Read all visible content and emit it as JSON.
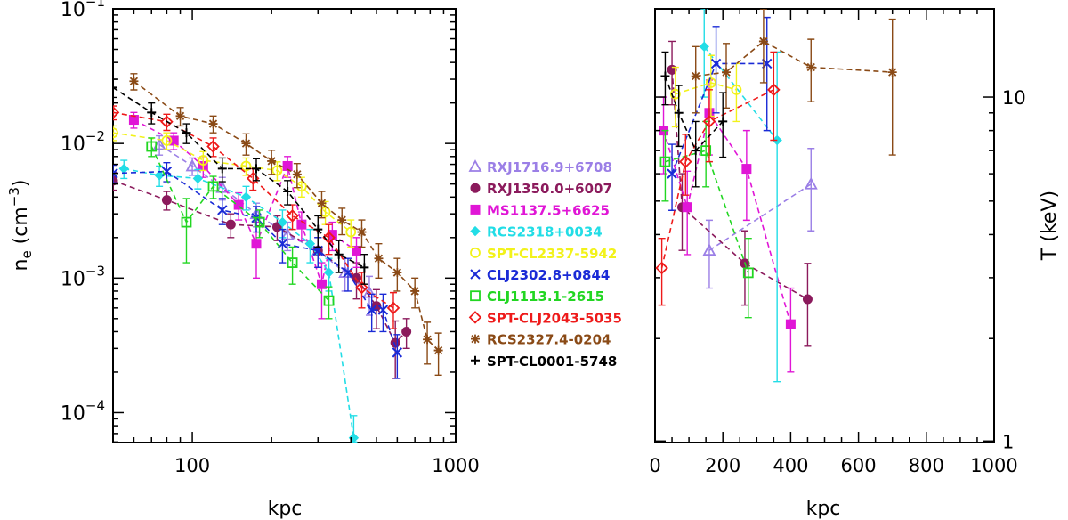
{
  "chart_data": [
    {
      "type": "scatter",
      "panel": "left",
      "xlabel": "kpc",
      "ylabel": "n_e (cm^-3)",
      "ylabel_main": "n",
      "ylabel_sub": "e",
      "ylabel_unit": " (cm",
      "ylabel_unit_exp": "−3",
      "ylabel_close": ")",
      "xscale": "log",
      "yscale": "log",
      "xlim": [
        50,
        1000
      ],
      "ylim": [
        6e-05,
        0.1
      ],
      "xticks": [
        {
          "value": 100,
          "label": "100"
        },
        {
          "value": 1000,
          "label": "1000"
        }
      ],
      "yticks": [
        {
          "value": 0.0001,
          "base": "10",
          "exp": "−4"
        },
        {
          "value": 0.001,
          "base": "10",
          "exp": "−3"
        },
        {
          "value": 0.01,
          "base": "10",
          "exp": "−2"
        },
        {
          "value": 0.1,
          "base": "10",
          "exp": "−1"
        }
      ],
      "series": [
        {
          "name": "RXJ1716.9+6708",
          "color": "#9b7fe6",
          "marker": "triangle",
          "points": [
            [
              75,
              0.0098,
              0.0016
            ],
            [
              100,
              0.0068,
              0.001
            ],
            [
              130,
              0.0047,
              0.0009
            ],
            [
              175,
              0.003,
              0.0006
            ],
            [
              230,
              0.0021,
              0.0005
            ],
            [
              300,
              0.0016,
              0.0004
            ],
            [
              380,
              0.0011,
              0.0003
            ],
            [
              470,
              0.00078,
              0.00025
            ]
          ]
        },
        {
          "name": "RXJ1350.0+6007",
          "color": "#8b1a5c",
          "marker": "circle",
          "points": [
            [
              50,
              0.0053,
              0.0008
            ],
            [
              80,
              0.0038,
              0.0006
            ],
            [
              140,
              0.0025,
              0.0005
            ],
            [
              210,
              0.0024,
              0.0005
            ],
            [
              300,
              0.0016,
              0.0004
            ],
            [
              420,
              0.001,
              0.0003
            ],
            [
              500,
              0.00062,
              0.0002
            ],
            [
              590,
              0.00033,
              0.00015
            ],
            [
              650,
              0.0004,
              0.0001
            ]
          ]
        },
        {
          "name": "MS1137.5+6625",
          "color": "#e016d6",
          "marker": "square",
          "points": [
            [
              60,
              0.015,
              0.002
            ],
            [
              85,
              0.0105,
              0.0015
            ],
            [
              110,
              0.0068,
              0.0012
            ],
            [
              150,
              0.0035,
              0.0008
            ],
            [
              175,
              0.0018,
              0.0008
            ],
            [
              230,
              0.0068,
              0.0012
            ],
            [
              260,
              0.0025,
              0.0006
            ],
            [
              310,
              0.0009,
              0.0004
            ],
            [
              340,
              0.0021,
              0.0005
            ],
            [
              420,
              0.0016,
              0.0004
            ]
          ]
        },
        {
          "name": "RCS2318+0034",
          "color": "#22dde6",
          "marker": "diamond",
          "points": [
            [
              55,
              0.0065,
              0.001
            ],
            [
              75,
              0.0058,
              0.001
            ],
            [
              105,
              0.0055,
              0.0009
            ],
            [
              160,
              0.004,
              0.0008
            ],
            [
              220,
              0.0026,
              0.0006
            ],
            [
              280,
              0.0018,
              0.0005
            ],
            [
              330,
              0.0011,
              0.0003
            ],
            [
              410,
              6.5e-05,
              3e-05
            ]
          ]
        },
        {
          "name": "SPT-CL2337-5942",
          "color": "#f2f21a",
          "marker": "circle-open",
          "points": [
            [
              50,
              0.012,
              0.0015
            ],
            [
              80,
              0.0105,
              0.0015
            ],
            [
              110,
              0.0075,
              0.0012
            ],
            [
              160,
              0.0068,
              0.001
            ],
            [
              210,
              0.0063,
              0.001
            ],
            [
              260,
              0.0048,
              0.0008
            ],
            [
              320,
              0.0031,
              0.0006
            ],
            [
              400,
              0.0022,
              0.0005
            ]
          ]
        },
        {
          "name": "CLJ2302.8+0844",
          "color": "#1a2ad6",
          "marker": "cross",
          "points": [
            [
              50,
              0.006,
              0.0009
            ],
            [
              80,
              0.0062,
              0.001
            ],
            [
              130,
              0.0032,
              0.0007
            ],
            [
              175,
              0.0028,
              0.0006
            ],
            [
              220,
              0.0018,
              0.0005
            ],
            [
              300,
              0.0016,
              0.0004
            ],
            [
              390,
              0.0011,
              0.0003
            ],
            [
              480,
              0.00058,
              0.00018
            ],
            [
              530,
              0.00058,
              0.00018
            ],
            [
              600,
              0.00028,
              0.0001
            ]
          ]
        },
        {
          "name": "CLJ1113.1-2615",
          "color": "#22d622",
          "marker": "square-open",
          "points": [
            [
              70,
              0.0095,
              0.0015
            ],
            [
              95,
              0.0026,
              0.0013
            ],
            [
              120,
              0.0048,
              0.0009
            ],
            [
              180,
              0.0026,
              0.0006
            ],
            [
              240,
              0.0013,
              0.0004
            ],
            [
              330,
              0.00068,
              0.00018
            ]
          ]
        },
        {
          "name": "SPT-CLJ2043-5035",
          "color": "#ee1a1a",
          "marker": "diamond-open",
          "points": [
            [
              50,
              0.017,
              0.002
            ],
            [
              80,
              0.0145,
              0.002
            ],
            [
              120,
              0.0095,
              0.0015
            ],
            [
              170,
              0.0055,
              0.001
            ],
            [
              240,
              0.0029,
              0.0006
            ],
            [
              330,
              0.002,
              0.0005
            ],
            [
              440,
              0.00085,
              0.00025
            ],
            [
              580,
              0.0006,
              0.00018
            ]
          ]
        },
        {
          "name": "RCS2327.4-0204",
          "color": "#8a4a16",
          "marker": "asterisk",
          "points": [
            [
              60,
              0.029,
              0.004
            ],
            [
              90,
              0.016,
              0.0025
            ],
            [
              120,
              0.014,
              0.002
            ],
            [
              160,
              0.01,
              0.0018
            ],
            [
              200,
              0.0074,
              0.0015
            ],
            [
              250,
              0.0059,
              0.0012
            ],
            [
              310,
              0.0036,
              0.0008
            ],
            [
              370,
              0.0027,
              0.0006
            ],
            [
              440,
              0.0022,
              0.0005
            ],
            [
              510,
              0.0014,
              0.0004
            ],
            [
              600,
              0.0011,
              0.0003
            ],
            [
              700,
              0.0008,
              0.0002
            ],
            [
              780,
              0.00035,
              0.00012
            ],
            [
              860,
              0.00029,
              0.0001
            ]
          ]
        },
        {
          "name": "SPT-CL0001-5748",
          "color": "#000000",
          "marker": "plus",
          "points": [
            [
              50,
              0.026,
              0.004
            ],
            [
              70,
              0.017,
              0.003
            ],
            [
              95,
              0.012,
              0.002
            ],
            [
              130,
              0.0065,
              0.0013
            ],
            [
              175,
              0.0065,
              0.0012
            ],
            [
              230,
              0.0044,
              0.0009
            ],
            [
              300,
              0.0023,
              0.0006
            ],
            [
              360,
              0.0015,
              0.0004
            ],
            [
              450,
              0.0012,
              0.0003
            ]
          ]
        }
      ]
    },
    {
      "type": "scatter",
      "panel": "right",
      "xlabel": "kpc",
      "ylabel": "T (keV)",
      "xscale": "linear",
      "yscale": "log",
      "xlim": [
        0,
        1000
      ],
      "ylim": [
        1,
        18
      ],
      "xticks": [
        {
          "value": 0,
          "label": "0"
        },
        {
          "value": 200,
          "label": "200"
        },
        {
          "value": 400,
          "label": "400"
        },
        {
          "value": 600,
          "label": "600"
        },
        {
          "value": 800,
          "label": "800"
        },
        {
          "value": 1000,
          "label": "1000"
        }
      ],
      "yticks": [
        {
          "value": 1,
          "label": "1"
        },
        {
          "value": 10,
          "label": "10"
        }
      ],
      "series": [
        {
          "name": "RXJ1716.9+6708",
          "points": [
            [
              160,
              3.6,
              0.8
            ],
            [
              460,
              5.6,
              1.5
            ]
          ]
        },
        {
          "name": "RXJ1350.0+6007",
          "points": [
            [
              50,
              12.0,
              2.5
            ],
            [
              80,
              4.8,
              1.2
            ],
            [
              265,
              3.3,
              0.8
            ],
            [
              450,
              2.6,
              0.7
            ]
          ]
        },
        {
          "name": "MS1137.5+6625",
          "points": [
            [
              25,
              8.0,
              2.0
            ],
            [
              95,
              4.8,
              1.3
            ],
            [
              160,
              9.0,
              2.2
            ],
            [
              270,
              6.2,
              1.8
            ],
            [
              400,
              2.2,
              0.6
            ]
          ]
        },
        {
          "name": "RCS2318+0034",
          "points": [
            [
              145,
              14.0,
              4.0
            ],
            [
              360,
              7.5,
              6.0
            ]
          ]
        },
        {
          "name": "SPT-CL2337-5942",
          "points": [
            [
              60,
              10.2,
              2.0
            ],
            [
              165,
              11.0,
              2.2
            ],
            [
              240,
              10.5,
              2.0
            ]
          ]
        },
        {
          "name": "CLJ2302.8+0844",
          "points": [
            [
              50,
              6.0,
              1.3
            ],
            [
              180,
              12.5,
              3.5
            ],
            [
              330,
              12.5,
              4.5
            ]
          ]
        },
        {
          "name": "CLJ1113.1-2615",
          "points": [
            [
              30,
              6.5,
              1.5
            ],
            [
              150,
              7.0,
              1.5
            ],
            [
              275,
              3.1,
              0.8
            ]
          ]
        },
        {
          "name": "SPT-CLJ2043-5035",
          "points": [
            [
              20,
              3.2,
              0.7
            ],
            [
              90,
              6.5,
              1.3
            ],
            [
              160,
              8.5,
              2.0
            ],
            [
              350,
              10.5,
              3.0
            ]
          ]
        },
        {
          "name": "RCS2327.4-0204",
          "points": [
            [
              120,
              11.5,
              2.5
            ],
            [
              210,
              11.8,
              2.5
            ],
            [
              320,
              14.5,
              3.5
            ],
            [
              460,
              12.2,
              2.5
            ],
            [
              700,
              11.8,
              5.0
            ]
          ]
        },
        {
          "name": "SPT-CL0001-5748",
          "points": [
            [
              30,
              11.5,
              2.0
            ],
            [
              70,
              9.0,
              1.8
            ],
            [
              120,
              7.0,
              1.5
            ],
            [
              200,
              8.5,
              1.8
            ]
          ]
        }
      ]
    }
  ]
}
